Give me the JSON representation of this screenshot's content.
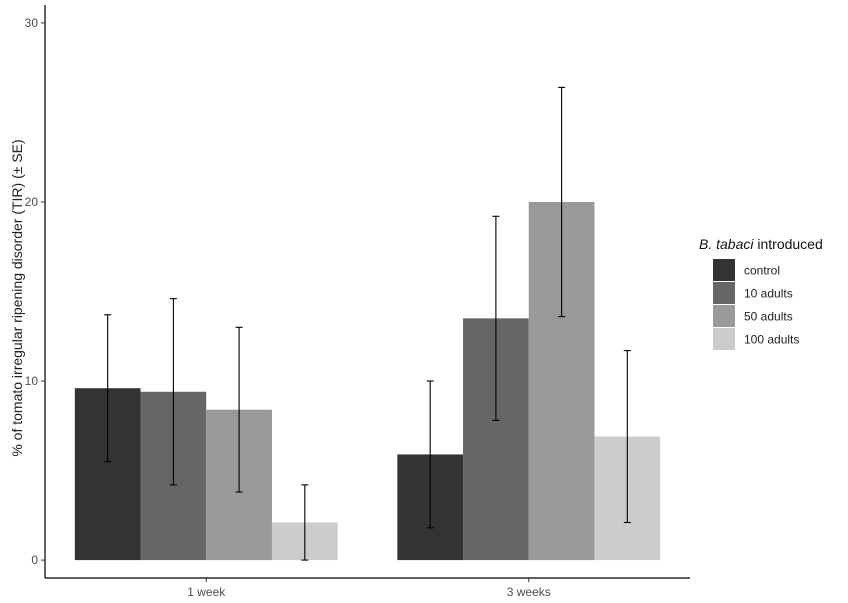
{
  "chart_data": {
    "type": "bar",
    "ylabel": "% of tomato irregular ripening disorder (TIR) (± SE)",
    "xlabel": "",
    "ylim": [
      -1,
      31
    ],
    "yticks": [
      0,
      10,
      20,
      30
    ],
    "categories": [
      "1 week",
      "3 weeks"
    ],
    "legend": {
      "title_italic": "B. tabaci",
      "title_rest": " introduced",
      "placement": "right"
    },
    "series": [
      {
        "name": "control",
        "color": "#333333",
        "values": [
          9.6,
          5.9
        ],
        "errors": [
          4.1,
          4.1
        ]
      },
      {
        "name": "10 adults",
        "color": "#666666",
        "values": [
          9.4,
          13.5
        ],
        "errors": [
          5.2,
          5.7
        ]
      },
      {
        "name": "50 adults",
        "color": "#999999",
        "values": [
          8.4,
          20.0
        ],
        "errors": [
          4.6,
          6.4
        ]
      },
      {
        "name": "100 adults",
        "color": "#cccccc",
        "values": [
          2.1,
          6.9
        ],
        "errors": [
          2.1,
          4.8
        ]
      }
    ],
    "grid": false
  }
}
